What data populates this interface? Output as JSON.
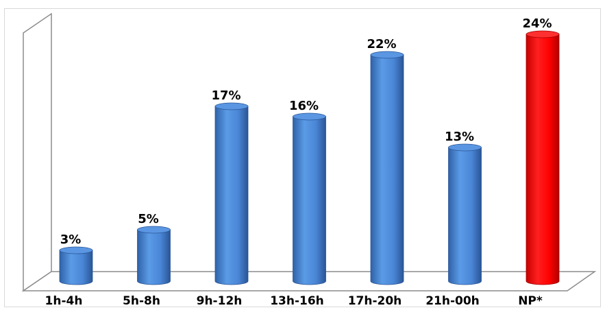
{
  "chart_data": {
    "type": "bar",
    "categories": [
      "1h-4h",
      "5h-8h",
      "9h-12h",
      "13h-16h",
      "17h-20h",
      "21h-00h",
      "NP*"
    ],
    "values": [
      3,
      5,
      17,
      16,
      22,
      13,
      24
    ],
    "value_labels": [
      "3%",
      "5%",
      "17%",
      "16%",
      "22%",
      "13%",
      "24%"
    ],
    "ylim": [
      0,
      24
    ],
    "grid": false,
    "legend": "none",
    "colors": {
      "default": "#4a86d6",
      "highlight": "#ff0000",
      "highlight_category": "NP*"
    }
  }
}
